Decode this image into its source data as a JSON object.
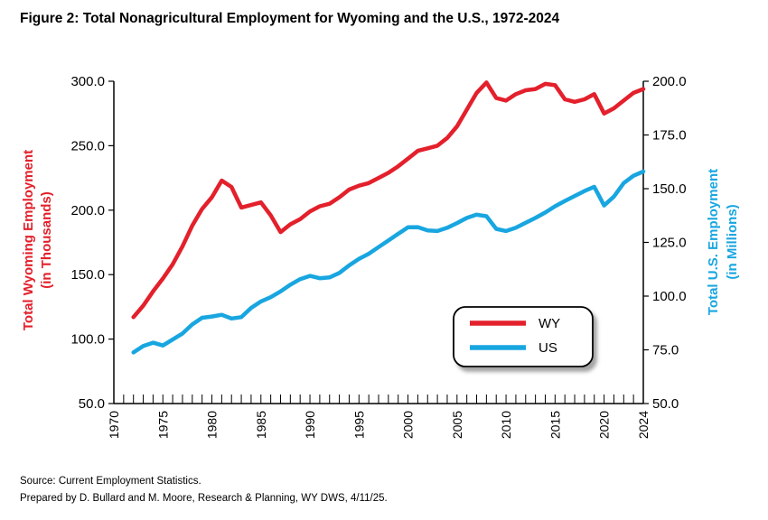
{
  "title": "Figure 2: Total Nonagricultural Employment for Wyoming and the U.S., 1972-2024",
  "source": "Source: Current Employment Statistics.",
  "prepared": "Prepared by D. Bullard and M. Moore, Research & Planning, WY DWS, 4/11/25.",
  "chart_data": {
    "type": "line",
    "left_axis": {
      "label_line1": "Total Wyoming Employment",
      "label_line2": "(in Thousands)",
      "range": [
        50,
        300
      ],
      "ticks": [
        "50.0",
        "100.0",
        "150.0",
        "200.0",
        "250.0",
        "300.0"
      ],
      "color": "#e3202b"
    },
    "right_axis": {
      "label_line1": "Total U.S. Employment",
      "label_line2": "(in Millions)",
      "range": [
        50,
        200
      ],
      "ticks": [
        "50.0",
        "75.0",
        "100.0",
        "125.0",
        "150.0",
        "175.0",
        "200.0"
      ],
      "color": "#18a6e0"
    },
    "x_axis": {
      "range": [
        1970,
        2024
      ],
      "ticks": [
        "1970",
        "1975",
        "1980",
        "1985",
        "1990",
        "1995",
        "2000",
        "2005",
        "2010",
        "2015",
        "2020",
        "2024"
      ]
    },
    "x": [
      1972,
      1973,
      1974,
      1975,
      1976,
      1977,
      1978,
      1979,
      1980,
      1981,
      1982,
      1983,
      1984,
      1985,
      1986,
      1987,
      1988,
      1989,
      1990,
      1991,
      1992,
      1993,
      1994,
      1995,
      1996,
      1997,
      1998,
      1999,
      2000,
      2001,
      2002,
      2003,
      2004,
      2005,
      2006,
      2007,
      2008,
      2009,
      2010,
      2011,
      2012,
      2013,
      2014,
      2015,
      2016,
      2017,
      2018,
      2019,
      2020,
      2021,
      2022,
      2023,
      2024
    ],
    "series": [
      {
        "name": "WY",
        "axis": "left",
        "color": "#e3202b",
        "values": [
          117,
          126,
          137,
          147,
          158,
          172,
          188,
          201,
          210,
          223,
          218,
          202,
          204,
          206,
          196,
          183,
          189,
          193,
          199,
          203,
          205,
          210,
          216,
          219,
          221,
          225,
          229,
          234,
          240,
          246,
          248,
          250,
          256,
          265,
          278,
          291,
          299,
          287,
          285,
          290,
          293,
          294,
          298,
          297,
          286,
          284,
          286,
          290,
          275,
          279,
          285,
          291,
          294
        ]
      },
      {
        "name": "US",
        "axis": "right",
        "color": "#18a6e0",
        "values": [
          73.8,
          76.8,
          78.3,
          77.0,
          79.8,
          82.6,
          86.8,
          89.9,
          90.5,
          91.3,
          89.6,
          90.2,
          94.5,
          97.5,
          99.5,
          102.2,
          105.3,
          107.9,
          109.4,
          108.3,
          108.7,
          110.8,
          114.3,
          117.3,
          119.7,
          122.8,
          125.9,
          129.0,
          132.0,
          132.1,
          130.6,
          130.3,
          131.8,
          134.0,
          136.4,
          137.9,
          137.2,
          131.3,
          130.3,
          131.8,
          134.1,
          136.4,
          138.9,
          141.8,
          144.3,
          146.6,
          148.9,
          150.9,
          142.2,
          146.3,
          152.6,
          156.0,
          158.0
        ]
      }
    ],
    "legend": {
      "position": "inside, lower-right",
      "entries": [
        "WY",
        "US"
      ]
    }
  }
}
